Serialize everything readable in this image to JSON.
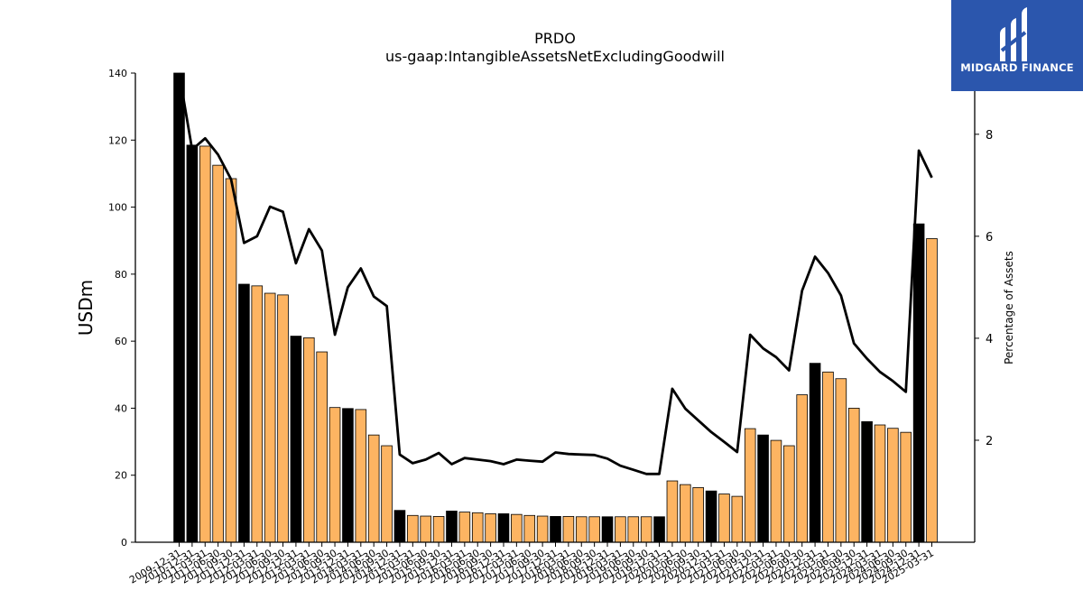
{
  "chart_data": {
    "type": "bar",
    "title": "PRDO",
    "subtitle": "us-gaap:IntangibleAssetsNetExcludingGoodwill",
    "ylabel": "USDm",
    "y2label": "Percentage of Assets",
    "ylim": [
      0,
      140
    ],
    "y2lim": [
      0,
      9.2
    ],
    "yticks": [
      0,
      20,
      40,
      60,
      80,
      100,
      120,
      140
    ],
    "y2ticks": [
      2,
      4,
      6,
      8
    ],
    "grid": false,
    "colors": {
      "annual": "#000000",
      "quarter": "#fdb462",
      "line": "#000000"
    },
    "categories": [
      "2009-12-31",
      "2010-12-31",
      "2011-03-31",
      "2011-06-30",
      "2011-09-30",
      "2011-12-31",
      "2012-03-31",
      "2012-06-30",
      "2012-09-30",
      "2012-12-31",
      "2013-03-31",
      "2013-06-30",
      "2013-09-30",
      "2013-12-31",
      "2014-03-31",
      "2014-06-30",
      "2014-09-30",
      "2014-12-31",
      "2015-03-31",
      "2015-06-30",
      "2015-09-30",
      "2015-12-31",
      "2016-03-31",
      "2016-06-30",
      "2016-09-30",
      "2016-12-31",
      "2017-03-31",
      "2017-06-30",
      "2017-09-30",
      "2017-12-31",
      "2018-03-31",
      "2018-06-30",
      "2018-09-30",
      "2018-12-31",
      "2019-03-31",
      "2019-06-30",
      "2019-09-30",
      "2019-12-31",
      "2020-03-31",
      "2020-06-30",
      "2020-09-30",
      "2020-12-31",
      "2021-03-31",
      "2021-06-30",
      "2021-09-30",
      "2021-12-31",
      "2022-03-31",
      "2022-06-30",
      "2022-09-30",
      "2022-12-31",
      "2023-03-31",
      "2023-06-30",
      "2023-09-30",
      "2023-12-31",
      "2024-03-31",
      "2024-06-30",
      "2024-09-30",
      "2024-12-31",
      "2025-03-31"
    ],
    "series": [
      {
        "kind": "bar",
        "values": [
          140.5,
          118.5,
          118.2,
          112.5,
          108.5,
          77.0,
          76.5,
          74.3,
          73.8,
          61.5,
          61.0,
          56.8,
          40.2,
          39.9,
          39.6,
          32.0,
          28.8,
          9.5,
          8.0,
          7.8,
          7.7,
          9.3,
          9.0,
          8.8,
          8.5,
          8.5,
          8.3,
          8.0,
          7.8,
          7.7,
          7.7,
          7.6,
          7.6,
          7.6,
          7.6,
          7.6,
          7.6,
          7.6,
          18.3,
          17.2,
          16.3,
          15.3,
          14.4,
          13.7,
          33.9,
          32.0,
          30.4,
          28.8,
          44.0,
          53.4,
          50.8,
          48.8,
          40.0,
          36.0,
          35.0,
          34.0,
          32.8,
          95.0,
          90.6
        ],
        "annual": [
          true,
          true,
          false,
          false,
          false,
          true,
          false,
          false,
          false,
          true,
          false,
          false,
          false,
          true,
          false,
          false,
          false,
          true,
          false,
          false,
          false,
          true,
          false,
          false,
          false,
          true,
          false,
          false,
          false,
          true,
          false,
          false,
          false,
          true,
          false,
          false,
          false,
          true,
          false,
          false,
          false,
          true,
          false,
          false,
          false,
          true,
          false,
          false,
          false,
          true,
          false,
          false,
          false,
          true,
          false,
          false,
          false,
          true,
          false
        ]
      },
      {
        "kind": "line",
        "axis": "right",
        "values": [
          9.25,
          7.7,
          7.92,
          7.6,
          7.12,
          5.87,
          6.0,
          6.58,
          6.48,
          5.47,
          6.14,
          5.72,
          4.07,
          5.0,
          5.37,
          4.82,
          4.63,
          1.72,
          1.55,
          1.62,
          1.75,
          1.53,
          1.65,
          1.62,
          1.59,
          1.53,
          1.62,
          1.6,
          1.58,
          1.76,
          1.73,
          1.72,
          1.71,
          1.64,
          1.5,
          1.42,
          1.34,
          1.34,
          3.01,
          2.62,
          2.39,
          2.16,
          1.97,
          1.77,
          4.07,
          3.8,
          3.63,
          3.37,
          4.93,
          5.6,
          5.28,
          4.84,
          3.9,
          3.6,
          3.34,
          3.16,
          2.95,
          7.68,
          7.15
        ]
      }
    ]
  },
  "brand": {
    "name": "MIDGARD FINANCE",
    "color": "#2b56ad"
  }
}
